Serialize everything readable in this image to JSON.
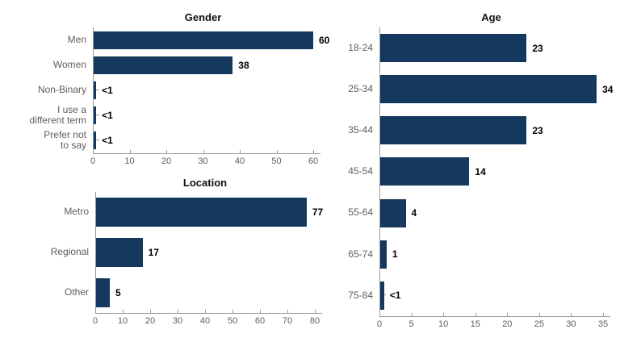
{
  "colors": {
    "bar": "#15395E",
    "axis": "#9b9b9b",
    "category_text": "#5d5d5d",
    "tick_text": "#5d5d5d",
    "value_text": "#000000",
    "title_text": "#111111",
    "background": "#ffffff"
  },
  "chart_data": [
    {
      "id": "gender",
      "type": "bar",
      "orientation": "horizontal",
      "title": "Gender",
      "categories": [
        "Men",
        "Women",
        "Non-Binary",
        "I use a\ndifferent term",
        "Prefer not\nto say"
      ],
      "values": [
        60,
        38,
        0.7,
        0.7,
        0.7
      ],
      "display_values": [
        "60",
        "38",
        "<1",
        "<1",
        "<1"
      ],
      "xlim": [
        0,
        60
      ],
      "xticks": [
        0,
        10,
        20,
        30,
        40,
        50,
        60
      ],
      "grid": "off",
      "legend": "none",
      "value_labels_position": "outside-end"
    },
    {
      "id": "age",
      "type": "bar",
      "orientation": "horizontal",
      "title": "Age",
      "categories": [
        "18-24",
        "25-34",
        "35-44",
        "45-54",
        "55-64",
        "65-74",
        "75-84"
      ],
      "values": [
        23,
        34,
        23,
        14,
        4,
        1,
        0.6
      ],
      "display_values": [
        "23",
        "34",
        "23",
        "14",
        "4",
        "1",
        "<1"
      ],
      "xlim": [
        0,
        35
      ],
      "xticks": [
        0,
        5,
        10,
        15,
        20,
        25,
        30,
        35
      ],
      "grid": "off",
      "legend": "none",
      "value_labels_position": "outside-end"
    },
    {
      "id": "location",
      "type": "bar",
      "orientation": "horizontal",
      "title": "Location",
      "categories": [
        "Metro",
        "Regional",
        "Other"
      ],
      "values": [
        77,
        17,
        5
      ],
      "display_values": [
        "77",
        "17",
        "5"
      ],
      "xlim": [
        0,
        80
      ],
      "xticks": [
        0,
        10,
        20,
        30,
        40,
        50,
        60,
        70,
        80
      ],
      "grid": "off",
      "legend": "none",
      "value_labels_position": "outside-end"
    }
  ]
}
